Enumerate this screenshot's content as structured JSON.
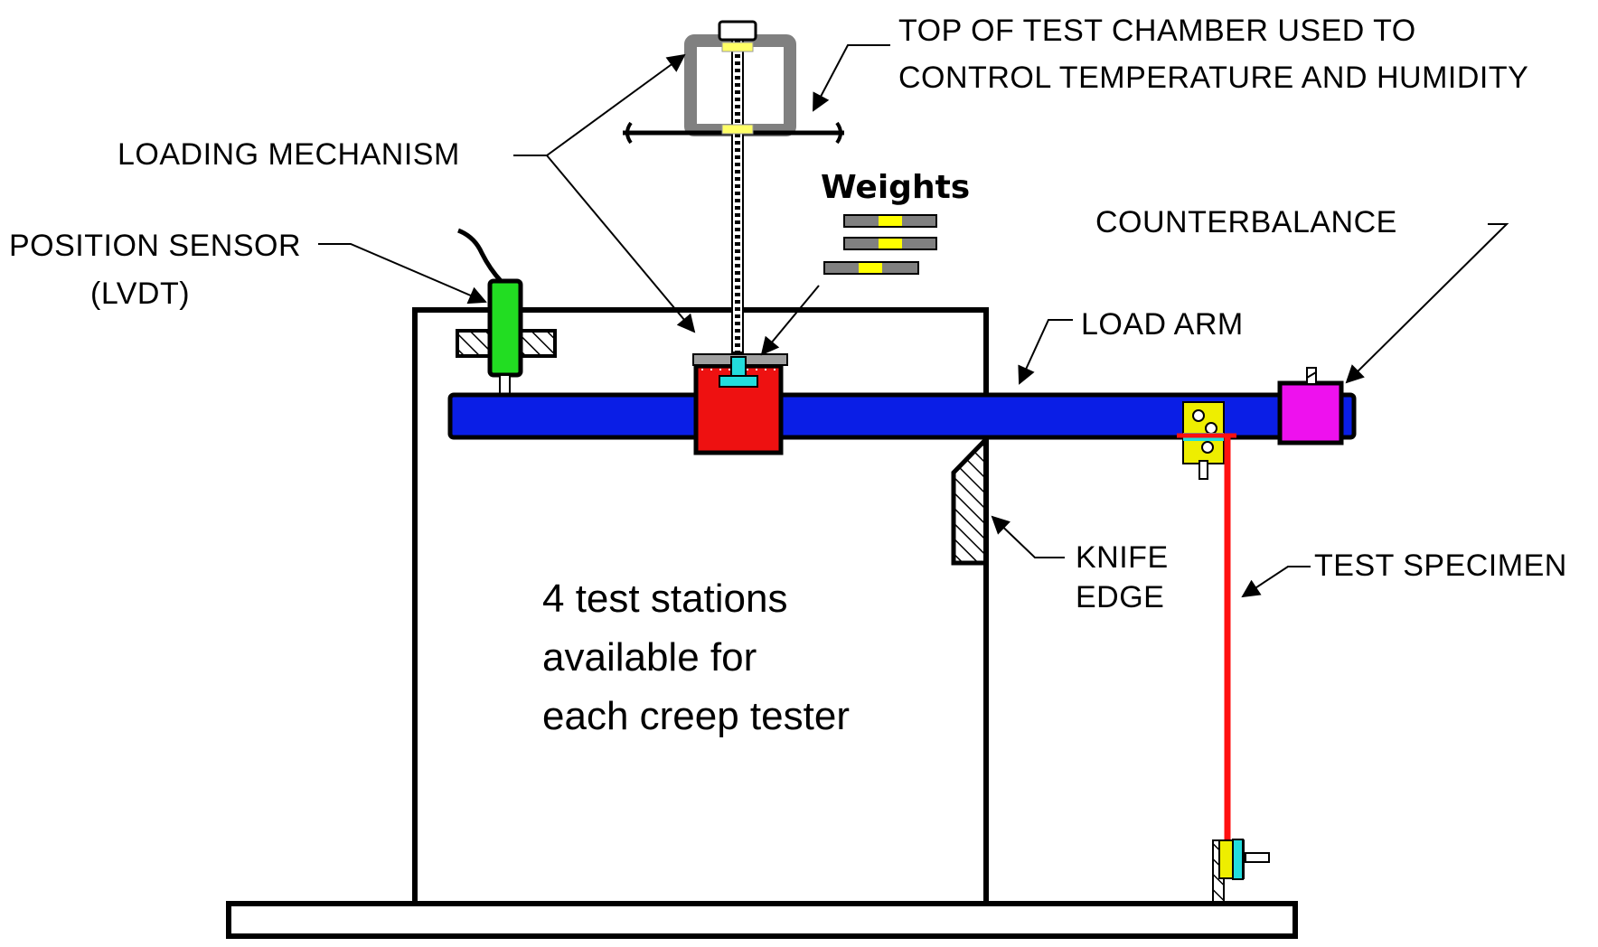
{
  "labels": {
    "top_chamber_line1": "TOP OF TEST CHAMBER USED TO",
    "top_chamber_line2": "CONTROL TEMPERATURE AND HUMIDITY",
    "loading_mechanism": "LOADING MECHANISM",
    "weights": "Weights",
    "position_sensor_line1": "POSITION SENSOR",
    "position_sensor_line2": "(LVDT)",
    "counterbalance": "COUNTERBALANCE",
    "load_arm": "LOAD ARM",
    "knife_edge_line1": "KNIFE",
    "knife_edge_line2": "EDGE",
    "test_specimen": "TEST SPECIMEN"
  },
  "note": {
    "line1": "4 test stations",
    "line2": "available for",
    "line3": "each creep tester"
  },
  "colors": {
    "load_arm": "#0a1ee6",
    "weight_holder": "#ee1111",
    "lvdt": "#22dd22",
    "counterbalance": "#ee11ee",
    "specimen": "#ff1010",
    "clamp": "#eeee00",
    "connector": "#22dddd",
    "chamber": "#808080"
  }
}
